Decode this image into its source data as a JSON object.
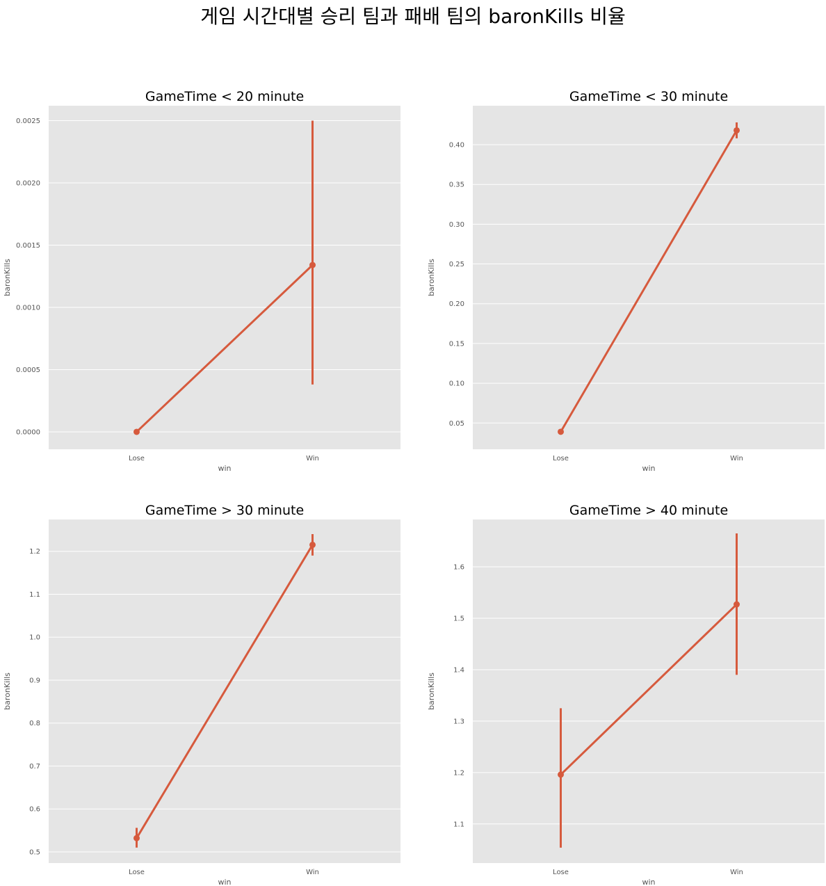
{
  "figure": {
    "title": "게임 시간대별 승리 팀과 패배 팀의 baronKills 비율"
  },
  "style": {
    "panel_bg": "#e5e5e5",
    "grid": "#ffffff",
    "line": "#d65a3d",
    "tick_text": "#555555"
  },
  "chart_data": [
    {
      "type": "line",
      "title": "GameTime < 20 minute",
      "xlabel": "win",
      "ylabel": "baronKills",
      "categories": [
        "Lose",
        "Win"
      ],
      "values": [
        0.0,
        0.00134
      ],
      "error_low": [
        0.0,
        0.00038
      ],
      "error_high": [
        0.0,
        0.0025
      ],
      "ylim": [
        -0.00014,
        0.00262
      ],
      "yticks": [
        0.0,
        0.0005,
        0.001,
        0.0015,
        0.002,
        0.0025
      ],
      "ytick_labels": [
        "0.0000",
        "0.0005",
        "0.0010",
        "0.0015",
        "0.0020",
        "0.0025"
      ],
      "grid": true
    },
    {
      "type": "line",
      "title": "GameTime < 30 minute",
      "xlabel": "win",
      "ylabel": "baronKills",
      "categories": [
        "Lose",
        "Win"
      ],
      "values": [
        0.039,
        0.418
      ],
      "error_low": [
        0.036,
        0.408
      ],
      "error_high": [
        0.042,
        0.428
      ],
      "ylim": [
        0.017,
        0.449
      ],
      "yticks": [
        0.05,
        0.1,
        0.15,
        0.2,
        0.25,
        0.3,
        0.35,
        0.4
      ],
      "ytick_labels": [
        "0.05",
        "0.10",
        "0.15",
        "0.20",
        "0.25",
        "0.30",
        "0.35",
        "0.40"
      ],
      "grid": true
    },
    {
      "type": "line",
      "title": "GameTime > 30 minute",
      "xlabel": "win",
      "ylabel": "baronKills",
      "categories": [
        "Lose",
        "Win"
      ],
      "values": [
        0.532,
        1.215
      ],
      "error_low": [
        0.51,
        1.19
      ],
      "error_high": [
        0.556,
        1.24
      ],
      "ylim": [
        0.474,
        1.274
      ],
      "yticks": [
        0.5,
        0.6,
        0.7,
        0.8,
        0.9,
        1.0,
        1.1,
        1.2
      ],
      "ytick_labels": [
        "0.5",
        "0.6",
        "0.7",
        "0.8",
        "0.9",
        "1.0",
        "1.1",
        "1.2"
      ],
      "grid": true
    },
    {
      "type": "line",
      "title": "GameTime > 40 minute",
      "xlabel": "win",
      "ylabel": "baronKills",
      "categories": [
        "Lose",
        "Win"
      ],
      "values": [
        1.196,
        1.527
      ],
      "error_low": [
        1.054,
        1.39
      ],
      "error_high": [
        1.325,
        1.665
      ],
      "ylim": [
        1.024,
        1.692
      ],
      "yticks": [
        1.1,
        1.2,
        1.3,
        1.4,
        1.5,
        1.6
      ],
      "ytick_labels": [
        "1.1",
        "1.2",
        "1.3",
        "1.4",
        "1.5",
        "1.6"
      ],
      "grid": true
    }
  ]
}
